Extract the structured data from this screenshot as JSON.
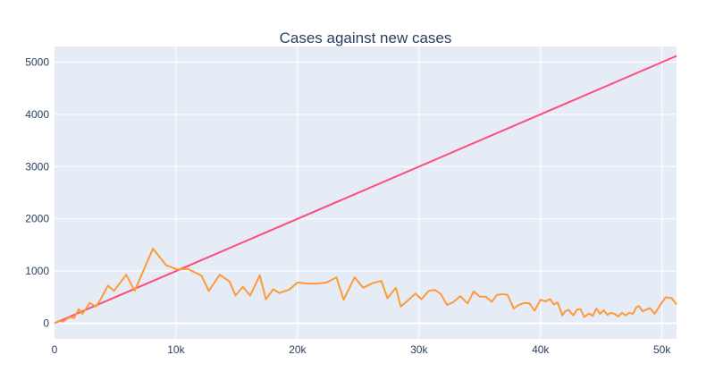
{
  "chart_data": {
    "type": "line",
    "title": "Cases against new cases",
    "xlabel": "",
    "ylabel": "",
    "xlim": [
      0,
      51200
    ],
    "ylim": [
      -300,
      5300
    ],
    "x_ticks": [
      0,
      10000,
      20000,
      30000,
      40000,
      50000
    ],
    "x_tick_labels": [
      "0",
      "10k",
      "20k",
      "30k",
      "40k",
      "50k"
    ],
    "y_ticks": [
      0,
      1000,
      2000,
      3000,
      4000,
      5000
    ],
    "y_tick_labels": [
      "0",
      "1000",
      "2000",
      "3000",
      "4000",
      "5000"
    ],
    "grid": true,
    "legend": "none",
    "colors": {
      "plot_bg": "#e5ecf6",
      "grid": "#ffffff",
      "text": "#2a3f5f",
      "reference_line": "#ff4a7a",
      "new_cases_line": "#ff9a3a"
    },
    "series": [
      {
        "color": "#ff4a7a",
        "x": [
          0,
          51200
        ],
        "y": [
          0,
          5120
        ]
      },
      {
        "color": "#ff9a3a",
        "x": [
          0,
          400,
          700,
          1000,
          1300,
          1600,
          2000,
          2300,
          2900,
          3400,
          3800,
          4400,
          4900,
          5900,
          6600,
          8100,
          9200,
          10100,
          11000,
          11500,
          12100,
          12700,
          13600,
          14400,
          14900,
          15500,
          16100,
          16900,
          17400,
          18000,
          18500,
          19300,
          20000,
          20800,
          21700,
          22400,
          23200,
          23800,
          24700,
          25400,
          26200,
          26900,
          27400,
          28100,
          28500,
          29100,
          29700,
          30200,
          30800,
          31300,
          31800,
          32300,
          32800,
          33400,
          34000,
          34500,
          35000,
          35500,
          36000,
          36400,
          36900,
          37300,
          37800,
          38200,
          38700,
          39100,
          39500,
          40000,
          40400,
          40800,
          41100,
          41400,
          41800,
          42000,
          42300,
          42700,
          43000,
          43300,
          43600,
          44000,
          44300,
          44600,
          44900,
          45200,
          45500,
          45800,
          46100,
          46400,
          46700,
          47000,
          47300,
          47600,
          47900,
          48100,
          48400,
          48700,
          49000,
          49400,
          49800,
          50300,
          50800,
          51200
        ],
        "y": [
          0,
          50,
          30,
          80,
          120,
          100,
          270,
          180,
          390,
          320,
          460,
          720,
          620,
          930,
          620,
          1430,
          1110,
          1030,
          1040,
          980,
          910,
          620,
          930,
          800,
          530,
          700,
          530,
          920,
          460,
          650,
          580,
          640,
          780,
          760,
          760,
          780,
          880,
          450,
          880,
          680,
          770,
          810,
          480,
          680,
          320,
          440,
          570,
          460,
          620,
          640,
          560,
          350,
          400,
          520,
          380,
          610,
          510,
          510,
          410,
          540,
          560,
          540,
          280,
          350,
          390,
          380,
          240,
          450,
          420,
          460,
          360,
          400,
          150,
          220,
          260,
          150,
          260,
          270,
          120,
          190,
          140,
          280,
          180,
          250,
          160,
          200,
          180,
          130,
          200,
          150,
          200,
          180,
          310,
          330,
          230,
          260,
          290,
          180,
          330,
          500,
          480,
          360
        ]
      }
    ]
  }
}
